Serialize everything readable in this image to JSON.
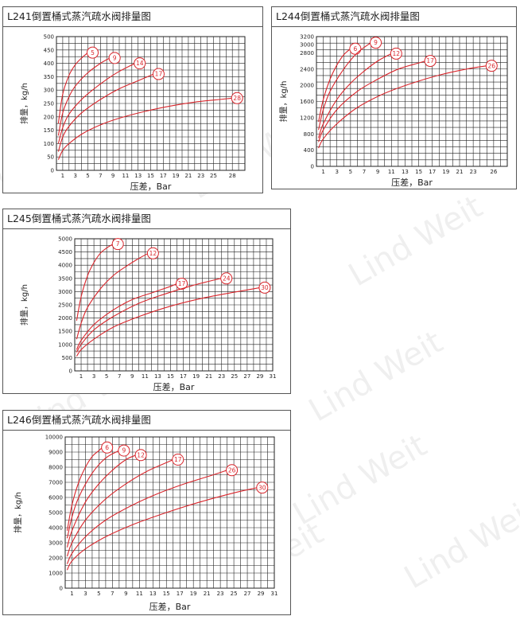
{
  "watermark": "Lind Weit",
  "colors": {
    "curve": "#d9262c",
    "grid": "#222222",
    "frame": "#555555",
    "text": "#222222"
  },
  "chart_data": [
    {
      "id": "L241",
      "type": "line",
      "title": "L241倒置桶式蒸汽疏水阀排量图",
      "xlabel": "压差，Bar",
      "ylabel": "排量，kg/h",
      "xlim": [
        0,
        30
      ],
      "ylim": [
        0,
        500
      ],
      "x_ticks": [
        1,
        3,
        5,
        7,
        9,
        11,
        13,
        15,
        17,
        19,
        21,
        23,
        25,
        28
      ],
      "y_ticks": [
        0,
        50,
        100,
        150,
        200,
        250,
        300,
        350,
        400,
        450,
        500
      ],
      "grid": true,
      "series": [
        {
          "name": "5",
          "x": [
            0.3,
            1,
            2,
            3,
            4,
            5
          ],
          "y": [
            175,
            285,
            355,
            395,
            420,
            440
          ]
        },
        {
          "name": "9",
          "x": [
            0.3,
            1,
            2,
            3,
            5,
            7,
            8.5
          ],
          "y": [
            130,
            215,
            275,
            315,
            365,
            400,
            420
          ]
        },
        {
          "name": "14",
          "x": [
            0.3,
            1,
            2,
            4,
            6,
            8,
            10,
            12.5
          ],
          "y": [
            100,
            160,
            210,
            265,
            305,
            340,
            370,
            400
          ]
        },
        {
          "name": "17",
          "x": [
            0.3,
            1,
            2,
            4,
            7,
            10,
            13,
            15.5
          ],
          "y": [
            70,
            125,
            165,
            215,
            265,
            305,
            335,
            360
          ]
        },
        {
          "name": "28",
          "x": [
            0.3,
            1,
            2,
            4,
            7,
            10,
            14,
            18,
            22,
            26,
            28
          ],
          "y": [
            40,
            75,
            100,
            135,
            170,
            195,
            220,
            240,
            255,
            265,
            270
          ]
        }
      ]
    },
    {
      "id": "L244",
      "type": "line",
      "title": "L244倒置桶式蒸汽疏水阀排量图",
      "xlabel": "压差，Bar",
      "ylabel": "排量，kg/h",
      "xlim": [
        0,
        28
      ],
      "ylim": [
        0,
        3200
      ],
      "x_ticks": [
        1,
        3,
        5,
        7,
        9,
        11,
        13,
        15,
        17,
        19,
        21,
        23,
        26
      ],
      "y_ticks": [
        0,
        400,
        800,
        1200,
        1600,
        2000,
        2400,
        2800,
        3000,
        3200
      ],
      "grid": true,
      "series": [
        {
          "name": "6",
          "x": [
            0.3,
            1,
            2,
            3,
            4,
            5
          ],
          "y": [
            1100,
            1650,
            2150,
            2500,
            2750,
            2900
          ]
        },
        {
          "name": "9",
          "x": [
            0.3,
            1,
            2,
            4,
            6,
            8
          ],
          "y": [
            900,
            1400,
            1850,
            2400,
            2800,
            3050
          ]
        },
        {
          "name": "12",
          "x": [
            0.3,
            1,
            3,
            5,
            7,
            9,
            11
          ],
          "y": [
            700,
            1050,
            1650,
            2050,
            2350,
            2600,
            2780
          ]
        },
        {
          "name": "17",
          "x": [
            0.3,
            1,
            3,
            6,
            9,
            12,
            15,
            16
          ],
          "y": [
            600,
            900,
            1400,
            1850,
            2150,
            2400,
            2550,
            2600
          ]
        },
        {
          "name": "26",
          "x": [
            0.3,
            1,
            3,
            6,
            10,
            14,
            18,
            22,
            25
          ],
          "y": [
            450,
            680,
            1050,
            1450,
            1800,
            2050,
            2250,
            2400,
            2480
          ]
        }
      ]
    },
    {
      "id": "L245",
      "type": "line",
      "title": "L245倒置桶式蒸汽疏水阀排量图",
      "xlabel": "压差，Bar",
      "ylabel": "排量，kg/h",
      "xlim": [
        0,
        31
      ],
      "ylim": [
        0,
        5000
      ],
      "x_ticks": [
        1,
        3,
        5,
        7,
        9,
        11,
        13,
        15,
        17,
        19,
        21,
        23,
        25,
        27,
        29,
        31
      ],
      "y_ticks": [
        0,
        500,
        1000,
        1500,
        2000,
        2500,
        3000,
        3500,
        4000,
        4500,
        5000
      ],
      "grid": true,
      "series": [
        {
          "name": "7",
          "x": [
            0.3,
            1,
            2,
            3,
            4,
            5,
            6
          ],
          "y": [
            1900,
            2800,
            3600,
            4100,
            4450,
            4650,
            4800
          ]
        },
        {
          "name": "12",
          "x": [
            0.3,
            1,
            2,
            4,
            6,
            8,
            10,
            11.5
          ],
          "y": [
            1200,
            1800,
            2400,
            3100,
            3600,
            3950,
            4250,
            4450
          ]
        },
        {
          "name": "17",
          "x": [
            0.3,
            1,
            3,
            6,
            9,
            12,
            15,
            16
          ],
          "y": [
            800,
            1150,
            1750,
            2300,
            2700,
            2950,
            3200,
            3300
          ]
        },
        {
          "name": "24",
          "x": [
            0.3,
            1,
            3,
            6,
            10,
            14,
            18,
            22,
            23
          ],
          "y": [
            700,
            1000,
            1550,
            2050,
            2550,
            2900,
            3200,
            3450,
            3500
          ]
        },
        {
          "name": "30",
          "x": [
            0.3,
            1,
            3,
            6,
            10,
            15,
            20,
            25,
            29
          ],
          "y": [
            550,
            800,
            1200,
            1650,
            2050,
            2450,
            2750,
            2980,
            3150
          ]
        }
      ]
    },
    {
      "id": "L246",
      "type": "line",
      "title": "L246倒置桶式蒸汽疏水阀排量图",
      "xlabel": "压差，Bar",
      "ylabel": "排量，kg/h",
      "xlim": [
        0,
        31
      ],
      "ylim": [
        0,
        10000
      ],
      "x_ticks": [
        1,
        3,
        5,
        7,
        9,
        11,
        13,
        15,
        17,
        19,
        21,
        23,
        25,
        27,
        29,
        31
      ],
      "y_ticks": [
        0,
        1000,
        2000,
        3000,
        4000,
        5000,
        6000,
        7000,
        8000,
        9000,
        10000
      ],
      "grid": true,
      "series": [
        {
          "name": "6",
          "x": [
            0.3,
            1,
            2,
            3,
            4,
            5,
            5.5
          ],
          "y": [
            3800,
            5500,
            7000,
            8000,
            8700,
            9100,
            9300
          ]
        },
        {
          "name": "9",
          "x": [
            0.3,
            1,
            2,
            4,
            6,
            8
          ],
          "y": [
            3300,
            4700,
            6000,
            7600,
            8600,
            9100
          ]
        },
        {
          "name": "12",
          "x": [
            0.3,
            1,
            3,
            5,
            7,
            9,
            10.5
          ],
          "y": [
            2700,
            3800,
            5700,
            6900,
            7800,
            8500,
            8800
          ]
        },
        {
          "name": "17",
          "x": [
            0.3,
            1,
            3,
            6,
            9,
            12,
            15,
            16
          ],
          "y": [
            2100,
            3000,
            4500,
            5900,
            6900,
            7700,
            8300,
            8500
          ]
        },
        {
          "name": "26",
          "x": [
            0.3,
            1,
            3,
            6,
            10,
            14,
            18,
            22,
            24
          ],
          "y": [
            1600,
            2300,
            3400,
            4500,
            5500,
            6300,
            6950,
            7500,
            7800
          ]
        },
        {
          "name": "30",
          "x": [
            0.3,
            1,
            3,
            6,
            10,
            15,
            20,
            25,
            28.5
          ],
          "y": [
            1200,
            1800,
            2600,
            3400,
            4200,
            5000,
            5700,
            6300,
            6650
          ]
        }
      ]
    }
  ]
}
